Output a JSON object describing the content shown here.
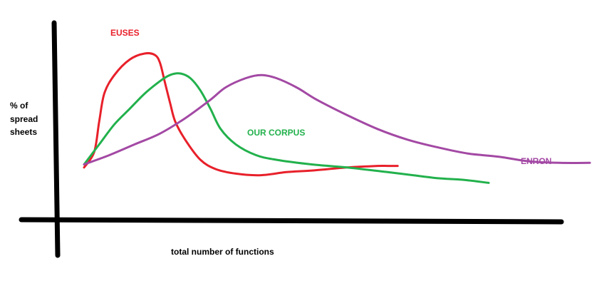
{
  "chart_data": {
    "type": "line",
    "title": "",
    "xlabel": "total number of functions",
    "ylabel": "% of spread sheets",
    "ylabel_lines": [
      "% of",
      "spread",
      "sheets"
    ],
    "xlim": [
      0,
      100
    ],
    "ylim": [
      0,
      100
    ],
    "grid": false,
    "legend": "inline labels near curves",
    "series": [
      {
        "name": "EUSES",
        "color": "#e8202a",
        "x": [
          0,
          2,
          3,
          4,
          6,
          9,
          12,
          14,
          15,
          16,
          17,
          18,
          20,
          23,
          26,
          30,
          35,
          40,
          45,
          52,
          58,
          60,
          62
        ],
        "y": [
          20,
          30,
          50,
          68,
          80,
          90,
          94,
          93,
          88,
          75,
          62,
          50,
          38,
          25,
          19,
          16,
          15,
          17,
          18,
          20,
          21,
          21,
          21
        ]
      },
      {
        "name": "OUR CORPUS",
        "color": "#22b14c",
        "x": [
          0,
          3,
          6,
          9,
          12,
          15,
          17,
          19,
          21,
          23,
          25,
          27,
          30,
          34,
          38,
          45,
          52,
          60,
          65,
          70,
          75,
          80
        ],
        "y": [
          22,
          35,
          48,
          58,
          68,
          76,
          80,
          81,
          78,
          70,
          58,
          45,
          35,
          28,
          25,
          22,
          20,
          17,
          15,
          13,
          12,
          10
        ]
      },
      {
        "name": "ENRON",
        "color": "#a349a4",
        "x": [
          0,
          5,
          10,
          15,
          20,
          25,
          28,
          32,
          35,
          38,
          42,
          46,
          52,
          58,
          64,
          70,
          76,
          82,
          88,
          94,
          100
        ],
        "y": [
          22,
          28,
          35,
          42,
          52,
          64,
          72,
          78,
          80,
          78,
          72,
          64,
          54,
          45,
          38,
          33,
          29,
          27,
          24,
          23,
          23
        ]
      }
    ],
    "annotations": [
      {
        "text": "EUSES",
        "series": "EUSES"
      },
      {
        "text": "OUR CORPUS",
        "series": "OUR CORPUS"
      },
      {
        "text": "ENRON",
        "series": "ENRON"
      }
    ]
  }
}
